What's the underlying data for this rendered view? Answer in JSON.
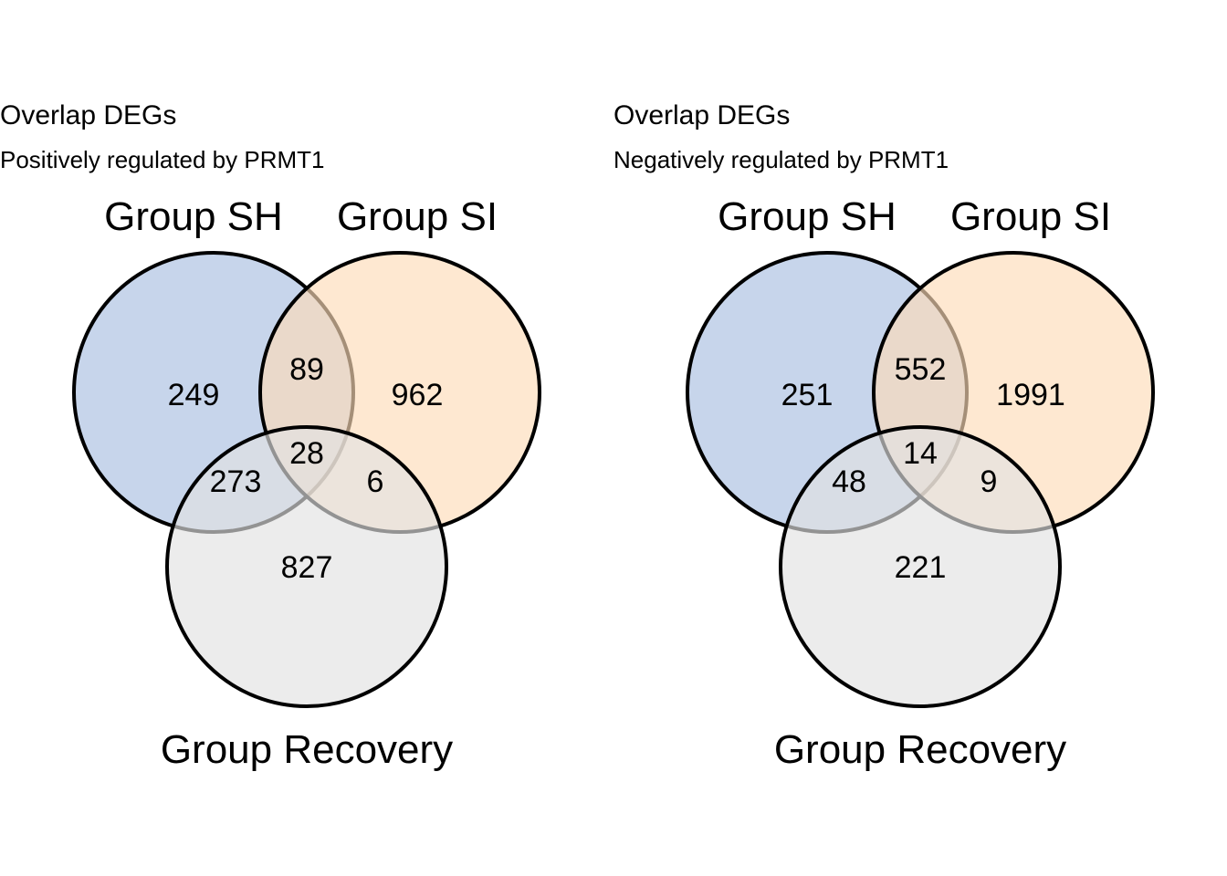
{
  "panels": [
    {
      "title": "Overlap DEGs",
      "subtitle": "Positively regulated by PRMT1",
      "sets": [
        {
          "name": "Group SH",
          "color": "#A9BFE0"
        },
        {
          "name": "Group SI",
          "color": "#FDDCB8"
        },
        {
          "name": "Group Recovery",
          "color": "#E2E2E2"
        }
      ],
      "regions": {
        "sh_only": "249",
        "si_only": "962",
        "recovery_only": "827",
        "sh_si": "89",
        "sh_recovery": "273",
        "si_recovery": "6",
        "all": "28"
      }
    },
    {
      "title": "Overlap DEGs",
      "subtitle": "Negatively regulated by PRMT1",
      "sets": [
        {
          "name": "Group SH",
          "color": "#A9BFE0"
        },
        {
          "name": "Group SI",
          "color": "#FDDCB8"
        },
        {
          "name": "Group Recovery",
          "color": "#E2E2E2"
        }
      ],
      "regions": {
        "sh_only": "251",
        "si_only": "1991",
        "recovery_only": "221",
        "sh_si": "552",
        "sh_recovery": "48",
        "si_recovery": "9",
        "all": "14"
      }
    }
  ]
}
